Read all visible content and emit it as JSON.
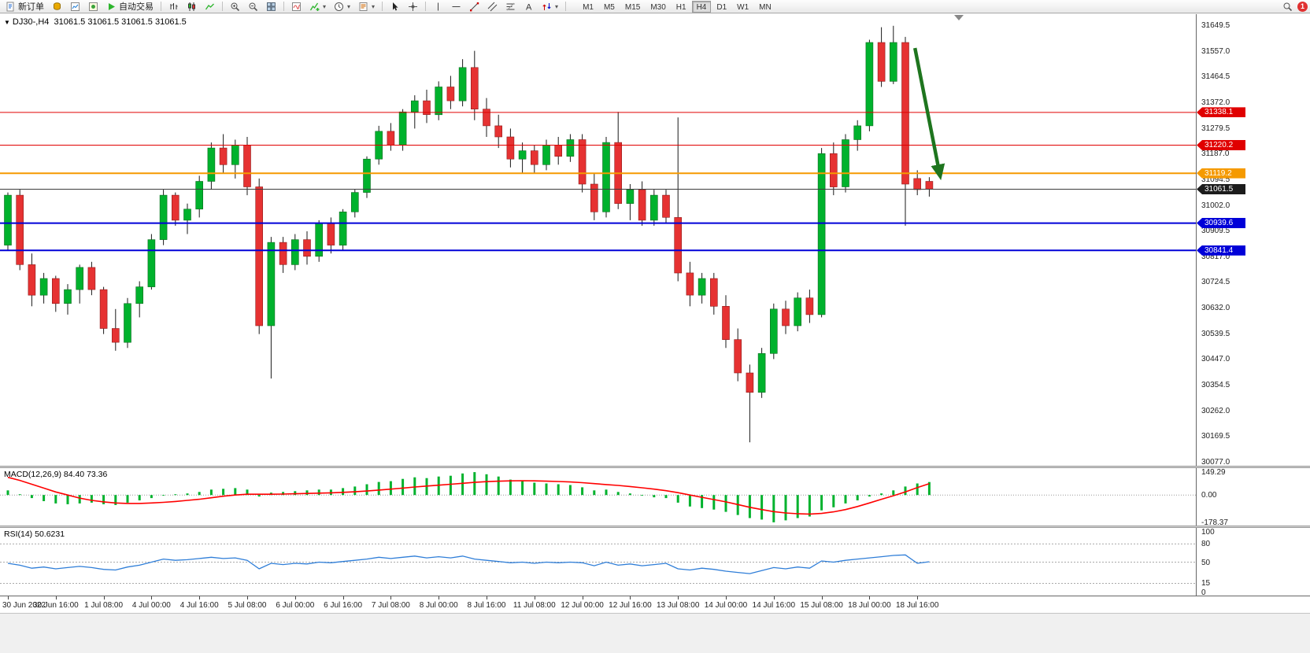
{
  "toolbar": {
    "new_order_label": "新订单",
    "auto_trading_label": "自动交易",
    "timeframes": [
      "M1",
      "M5",
      "M15",
      "M30",
      "H1",
      "H4",
      "D1",
      "W1",
      "MN"
    ],
    "active_timeframe": "H4",
    "notification_count": "1"
  },
  "chart": {
    "symbol_label": "DJ30-,H4",
    "ohlc_label": "31061.5 31061.5 31061.5 31061.5"
  },
  "colors": {
    "bull": "#00B22D",
    "bull_border": "#0B6B1F",
    "bear": "#E63232",
    "bear_border": "#8F1B1B",
    "macd_hist": "#00B22D",
    "macd_signal": "#FF0000",
    "rsi_line": "#2F7ED8"
  },
  "chart_data": {
    "type": "candlestick",
    "symbol": "DJ30-",
    "timeframe": "H4",
    "price_axis": {
      "top": 31649.5,
      "step": 92.5,
      "ticks": [
        "31649.5",
        "31557.0",
        "31464.5",
        "31372.0",
        "31279.5",
        "31187.0",
        "31094.5",
        "31002.0",
        "30909.5",
        "30817.0",
        "30724.5",
        "30632.0",
        "30539.5",
        "30447.0",
        "30354.5",
        "30262.0",
        "30169.5",
        "30077.0"
      ]
    },
    "time_axis": [
      "30 Jun 2022",
      "30 Jun 16:00",
      "1 Jul 08:00",
      "4 Jul 00:00",
      "4 Jul 16:00",
      "5 Jul 08:00",
      "6 Jul 00:00",
      "6 Jul 16:00",
      "7 Jul 08:00",
      "8 Jul 00:00",
      "8 Jul 16:00",
      "11 Jul 08:00",
      "12 Jul 00:00",
      "12 Jul 16:00",
      "13 Jul 08:00",
      "14 Jul 00:00",
      "14 Jul 16:00",
      "15 Jul 08:00",
      "18 Jul 00:00",
      "18 Jul 16:00"
    ],
    "hlines": [
      {
        "label": "31338.1",
        "price": 31338.1,
        "color": "#E00000",
        "thickness": 1
      },
      {
        "label": "31220.2",
        "price": 31220.2,
        "color": "#E00000",
        "thickness": 1
      },
      {
        "label": "31119.2",
        "price": 31119.2,
        "color": "#F59A00",
        "thickness": 2
      },
      {
        "label": "31061.5",
        "price": 31061.5,
        "color": "#3C3C3C",
        "badge_color": "#1C1C1C",
        "thickness": 1,
        "current": true
      },
      {
        "label": "30939.6",
        "price": 30939.6,
        "color": "#0000D8",
        "thickness": 2
      },
      {
        "label": "30841.4",
        "price": 30841.4,
        "color": "#0000D8",
        "thickness": 2
      }
    ],
    "current_price": 31061.5,
    "annotation_arrow": {
      "bar_from": 75.8,
      "price_from": 31570,
      "bar_to": 77.9,
      "price_to": 31110,
      "color": "#1E751E"
    },
    "candles": [
      [
        30860,
        31050,
        30840,
        31040
      ],
      [
        31040,
        31060,
        30770,
        30790
      ],
      [
        30790,
        30830,
        30640,
        30680
      ],
      [
        30680,
        30760,
        30650,
        30740
      ],
      [
        30740,
        30750,
        30620,
        30650
      ],
      [
        30650,
        30720,
        30610,
        30700
      ],
      [
        30700,
        30790,
        30650,
        30780
      ],
      [
        30780,
        30800,
        30680,
        30700
      ],
      [
        30700,
        30710,
        30540,
        30560
      ],
      [
        30560,
        30630,
        30480,
        30510
      ],
      [
        30510,
        30670,
        30490,
        30650
      ],
      [
        30650,
        30730,
        30600,
        30710
      ],
      [
        30710,
        30900,
        30700,
        30880
      ],
      [
        30880,
        31060,
        30860,
        31040
      ],
      [
        31040,
        31050,
        30930,
        30950
      ],
      [
        30950,
        31010,
        30900,
        30990
      ],
      [
        30990,
        31110,
        30960,
        31090
      ],
      [
        31090,
        31230,
        31060,
        31210
      ],
      [
        31210,
        31260,
        31120,
        31150
      ],
      [
        31150,
        31240,
        31100,
        31220
      ],
      [
        31220,
        31250,
        31040,
        31070
      ],
      [
        31070,
        31100,
        30540,
        30570
      ],
      [
        30570,
        30890,
        30380,
        30870
      ],
      [
        30870,
        30890,
        30760,
        30790
      ],
      [
        30790,
        30900,
        30770,
        30880
      ],
      [
        30880,
        30910,
        30790,
        30820
      ],
      [
        30820,
        30950,
        30800,
        30940
      ],
      [
        30940,
        30960,
        30830,
        30860
      ],
      [
        30860,
        30990,
        30840,
        30980
      ],
      [
        30980,
        31060,
        30960,
        31050
      ],
      [
        31050,
        31180,
        31030,
        31170
      ],
      [
        31170,
        31290,
        31150,
        31270
      ],
      [
        31270,
        31300,
        31200,
        31220
      ],
      [
        31220,
        31350,
        31200,
        31340
      ],
      [
        31340,
        31400,
        31280,
        31380
      ],
      [
        31380,
        31420,
        31300,
        31330
      ],
      [
        31330,
        31450,
        31310,
        31430
      ],
      [
        31430,
        31470,
        31350,
        31380
      ],
      [
        31380,
        31530,
        31360,
        31500
      ],
      [
        31500,
        31560,
        31310,
        31350
      ],
      [
        31350,
        31390,
        31250,
        31290
      ],
      [
        31290,
        31330,
        31210,
        31250
      ],
      [
        31250,
        31280,
        31140,
        31170
      ],
      [
        31170,
        31230,
        31120,
        31200
      ],
      [
        31200,
        31220,
        31120,
        31150
      ],
      [
        31150,
        31240,
        31130,
        31220
      ],
      [
        31220,
        31250,
        31150,
        31180
      ],
      [
        31180,
        31260,
        31160,
        31240
      ],
      [
        31240,
        31260,
        31050,
        31080
      ],
      [
        31080,
        31120,
        30950,
        30980
      ],
      [
        30980,
        31250,
        30960,
        31230
      ],
      [
        31230,
        31340,
        30990,
        31010
      ],
      [
        31010,
        31080,
        30950,
        31060
      ],
      [
        31060,
        31090,
        30930,
        30950
      ],
      [
        30950,
        31060,
        30930,
        31040
      ],
      [
        31040,
        31060,
        30940,
        30960
      ],
      [
        30960,
        31320,
        30730,
        30760
      ],
      [
        30760,
        30800,
        30640,
        30680
      ],
      [
        30680,
        30760,
        30650,
        30740
      ],
      [
        30740,
        30760,
        30610,
        30640
      ],
      [
        30640,
        30680,
        30490,
        30520
      ],
      [
        30520,
        30560,
        30370,
        30400
      ],
      [
        30400,
        30430,
        30150,
        30330
      ],
      [
        30330,
        30490,
        30310,
        30470
      ],
      [
        30470,
        30650,
        30450,
        30630
      ],
      [
        30630,
        30660,
        30540,
        30570
      ],
      [
        30570,
        30690,
        30550,
        30670
      ],
      [
        30670,
        30700,
        30580,
        30610
      ],
      [
        30610,
        31210,
        30600,
        31190
      ],
      [
        31190,
        31230,
        31040,
        31070
      ],
      [
        31070,
        31260,
        31050,
        31240
      ],
      [
        31240,
        31310,
        31200,
        31290
      ],
      [
        31290,
        31600,
        31270,
        31590
      ],
      [
        31590,
        31645,
        31430,
        31450
      ],
      [
        31450,
        31650,
        31440,
        31590
      ],
      [
        31590,
        31610,
        30930,
        31080
      ],
      [
        31100,
        31130,
        31040,
        31060
      ],
      [
        31090,
        31105,
        31035,
        31061.5
      ]
    ],
    "macd": {
      "name": "MACD(12,26,9)",
      "main_value": "84.40",
      "signal_value": "73.36",
      "axis_max": 149.29,
      "axis_min": -178.37,
      "axis_ticks": [
        "149.29",
        "0.00",
        "-178.37"
      ],
      "histogram": [
        30,
        5,
        -20,
        -40,
        -55,
        -60,
        -55,
        -50,
        -60,
        -65,
        -50,
        -35,
        -20,
        -5,
        5,
        10,
        20,
        35,
        40,
        45,
        35,
        -10,
        15,
        20,
        25,
        30,
        35,
        35,
        45,
        55,
        70,
        85,
        90,
        105,
        115,
        110,
        120,
        125,
        140,
        149,
        135,
        120,
        100,
        90,
        80,
        75,
        70,
        65,
        50,
        30,
        35,
        20,
        10,
        -5,
        -15,
        -20,
        -50,
        -75,
        -85,
        -95,
        -110,
        -130,
        -150,
        -160,
        -178,
        -165,
        -150,
        -140,
        -100,
        -80,
        -55,
        -35,
        -10,
        10,
        30,
        55,
        75,
        84.4
      ],
      "signal": [
        115,
        95,
        70,
        45,
        20,
        0,
        -20,
        -35,
        -45,
        -52,
        -55,
        -55,
        -52,
        -48,
        -42,
        -35,
        -28,
        -18,
        -8,
        0,
        5,
        5,
        5,
        6,
        8,
        10,
        12,
        14,
        17,
        21,
        26,
        32,
        38,
        45,
        52,
        58,
        64,
        70,
        76,
        82,
        87,
        90,
        92,
        93,
        92,
        90,
        88,
        85,
        80,
        74,
        68,
        62,
        55,
        47,
        38,
        28,
        15,
        0,
        -15,
        -30,
        -45,
        -62,
        -80,
        -95,
        -108,
        -117,
        -122,
        -124,
        -120,
        -110,
        -95,
        -75,
        -52,
        -28,
        -5,
        20,
        48,
        73.36
      ]
    },
    "rsi": {
      "name": "RSI(14)",
      "value": "50.6231",
      "axis_ticks": [
        "100",
        "80",
        "50",
        "15",
        "0"
      ],
      "levels": [
        80,
        50,
        15
      ],
      "values": [
        48,
        45,
        40,
        42,
        39,
        41,
        43,
        41,
        38,
        37,
        42,
        45,
        50,
        55,
        53,
        54,
        56,
        58,
        56,
        57,
        53,
        39,
        48,
        46,
        48,
        47,
        50,
        49,
        51,
        53,
        55,
        58,
        56,
        58,
        60,
        57,
        59,
        57,
        60,
        55,
        53,
        51,
        49,
        50,
        48,
        50,
        49,
        50,
        49,
        44,
        50,
        45,
        47,
        44,
        46,
        48,
        39,
        37,
        40,
        38,
        35,
        33,
        31,
        36,
        41,
        39,
        42,
        40,
        52,
        50,
        53,
        55,
        57,
        59,
        61,
        62,
        48,
        50.62
      ]
    }
  }
}
